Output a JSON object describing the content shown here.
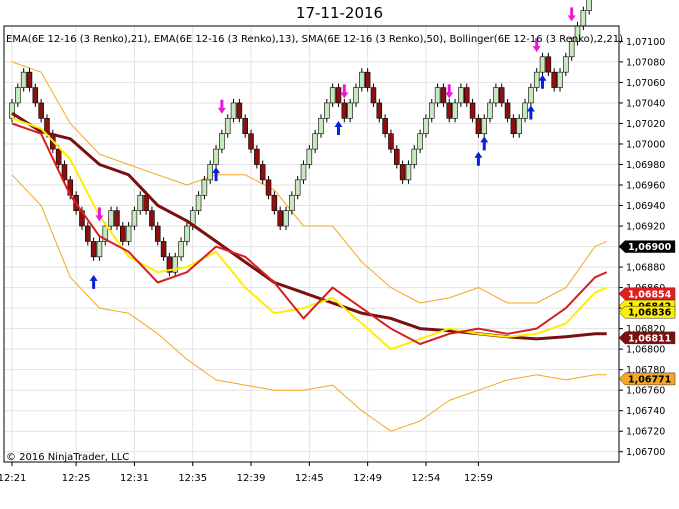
{
  "header": {
    "title": "17-11-2016"
  },
  "chart_data": {
    "type": "candlestick-renko",
    "title": "17-11-2016",
    "indicator_label": "EMA(6E 12-16 (3 Renko),21), EMA(6E 12-16 (3 Renko),13), SMA(6E 12-16 (3 Renko),50), Bollinger(6E 12-16 (3 Renko),2,21)",
    "copyright": "© 2016 NinjaTrader, LLC",
    "y_ticks": [
      "1,07100",
      "1,07080",
      "1,07060",
      "1,07040",
      "1,07020",
      "1,07000",
      "1,06980",
      "1,06960",
      "1,06940",
      "1,06920",
      "1,06900",
      "1,06880",
      "1,06860",
      "1,06840",
      "1,06820",
      "1,06800",
      "1,06780",
      "1,06760",
      "1,06740",
      "1,06720",
      "1,06700"
    ],
    "y_tick_values": [
      1.071,
      1.0708,
      1.0706,
      1.0704,
      1.0702,
      1.07,
      1.0698,
      1.0696,
      1.0694,
      1.0692,
      1.069,
      1.0688,
      1.0686,
      1.0684,
      1.0682,
      1.068,
      1.0678,
      1.0676,
      1.0674,
      1.0672,
      1.067
    ],
    "ylim": [
      1.0669,
      1.07115
    ],
    "x_ticks": [
      "12:21",
      "12:25",
      "12:31",
      "12:35",
      "12:39",
      "12:45",
      "12:49",
      "12:54",
      "12:59"
    ],
    "x_tick_bricks": [
      0,
      11,
      21,
      31,
      41,
      51,
      61,
      71,
      80
    ],
    "brick_size": 0.00015,
    "start_close": 1.07025,
    "moves": [
      1,
      1,
      1,
      -1,
      -1,
      -1,
      -1,
      -1,
      -1,
      -1,
      -1,
      -1,
      -1,
      -1,
      -1,
      1,
      1,
      1,
      -1,
      -1,
      1,
      1,
      1,
      -1,
      -1,
      -1,
      -1,
      -1,
      1,
      1,
      1,
      1,
      1,
      1,
      1,
      1,
      1,
      1,
      1,
      -1,
      -1,
      -1,
      -1,
      -1,
      -1,
      -1,
      -1,
      1,
      1,
      1,
      1,
      1,
      1,
      1,
      1,
      1,
      -1,
      -1,
      1,
      1,
      1,
      -1,
      -1,
      -1,
      -1,
      -1,
      -1,
      -1,
      1,
      1,
      1,
      1,
      1,
      1,
      -1,
      -1,
      1,
      1,
      -1,
      -1,
      -1,
      1,
      1,
      1,
      -1,
      -1,
      -1,
      1,
      1,
      1,
      1,
      1,
      -1,
      -1,
      1,
      1,
      1,
      1,
      1,
      1,
      1
    ],
    "series": [
      {
        "name": "EMA(6E 12-16 (3 Renko),21)",
        "color": "#d62020",
        "width": 2,
        "values": [
          [
            0,
            1.0702
          ],
          [
            5,
            1.0701
          ],
          [
            10,
            1.0695
          ],
          [
            15,
            1.0691
          ],
          [
            20,
            1.06895
          ],
          [
            25,
            1.06865
          ],
          [
            30,
            1.06875
          ],
          [
            35,
            1.069
          ],
          [
            40,
            1.0689
          ],
          [
            45,
            1.06865
          ],
          [
            50,
            1.0683
          ],
          [
            55,
            1.0686
          ],
          [
            60,
            1.0684
          ],
          [
            65,
            1.0682
          ],
          [
            70,
            1.06805
          ],
          [
            75,
            1.06815
          ],
          [
            80,
            1.0682
          ],
          [
            85,
            1.06815
          ],
          [
            90,
            1.0682
          ],
          [
            95,
            1.0684
          ],
          [
            100,
            1.0687
          ],
          [
            102,
            1.06875
          ]
        ]
      },
      {
        "name": "EMA(6E 12-16 (3 Renko),13)",
        "color": "#ffee00",
        "width": 2,
        "values": [
          [
            0,
            1.07025
          ],
          [
            5,
            1.07015
          ],
          [
            10,
            1.06985
          ],
          [
            15,
            1.0693
          ],
          [
            20,
            1.0689
          ],
          [
            25,
            1.06875
          ],
          [
            30,
            1.0688
          ],
          [
            35,
            1.06895
          ],
          [
            40,
            1.0686
          ],
          [
            45,
            1.06835
          ],
          [
            50,
            1.0684
          ],
          [
            55,
            1.0685
          ],
          [
            60,
            1.06825
          ],
          [
            65,
            1.068
          ],
          [
            70,
            1.0681
          ],
          [
            75,
            1.0682
          ],
          [
            80,
            1.06815
          ],
          [
            85,
            1.06812
          ],
          [
            90,
            1.06815
          ],
          [
            95,
            1.06825
          ],
          [
            100,
            1.06855
          ],
          [
            102,
            1.0686
          ]
        ]
      },
      {
        "name": "SMA(6E 12-16 (3 Renko),50)",
        "color": "#7a1010",
        "width": 3,
        "values": [
          [
            0,
            1.0703
          ],
          [
            5,
            1.07012
          ],
          [
            10,
            1.07005
          ],
          [
            15,
            1.0698
          ],
          [
            20,
            1.0697
          ],
          [
            25,
            1.0694
          ],
          [
            30,
            1.06925
          ],
          [
            35,
            1.06905
          ],
          [
            40,
            1.06885
          ],
          [
            45,
            1.06865
          ],
          [
            50,
            1.06855
          ],
          [
            55,
            1.06845
          ],
          [
            60,
            1.06835
          ],
          [
            65,
            1.0683
          ],
          [
            70,
            1.0682
          ],
          [
            75,
            1.06818
          ],
          [
            80,
            1.06815
          ],
          [
            85,
            1.06812
          ],
          [
            90,
            1.0681
          ],
          [
            95,
            1.06812
          ],
          [
            100,
            1.06815
          ],
          [
            102,
            1.06815
          ]
        ]
      },
      {
        "name": "Bollinger upper",
        "color": "#f5a623",
        "width": 1,
        "values": [
          [
            0,
            1.0708
          ],
          [
            5,
            1.0707
          ],
          [
            10,
            1.0702
          ],
          [
            15,
            1.0699
          ],
          [
            20,
            1.0698
          ],
          [
            25,
            1.0697
          ],
          [
            30,
            1.0696
          ],
          [
            35,
            1.0697
          ],
          [
            40,
            1.0697
          ],
          [
            45,
            1.06955
          ],
          [
            50,
            1.0692
          ],
          [
            55,
            1.0692
          ],
          [
            60,
            1.06885
          ],
          [
            65,
            1.0686
          ],
          [
            70,
            1.06845
          ],
          [
            75,
            1.0685
          ],
          [
            80,
            1.0686
          ],
          [
            85,
            1.06845
          ],
          [
            90,
            1.06845
          ],
          [
            95,
            1.0686
          ],
          [
            100,
            1.069
          ],
          [
            102,
            1.06905
          ]
        ]
      },
      {
        "name": "Bollinger lower",
        "color": "#f5a623",
        "width": 1,
        "values": [
          [
            0,
            1.0697
          ],
          [
            5,
            1.0694
          ],
          [
            10,
            1.0687
          ],
          [
            15,
            1.0684
          ],
          [
            20,
            1.06835
          ],
          [
            25,
            1.06815
          ],
          [
            30,
            1.0679
          ],
          [
            35,
            1.0677
          ],
          [
            40,
            1.06765
          ],
          [
            45,
            1.0676
          ],
          [
            50,
            1.0676
          ],
          [
            55,
            1.06765
          ],
          [
            60,
            1.0674
          ],
          [
            65,
            1.0672
          ],
          [
            70,
            1.0673
          ],
          [
            75,
            1.0675
          ],
          [
            80,
            1.0676
          ],
          [
            85,
            1.0677
          ],
          [
            90,
            1.06775
          ],
          [
            95,
            1.0677
          ],
          [
            100,
            1.06775
          ],
          [
            102,
            1.06775
          ]
        ]
      }
    ],
    "signals": [
      {
        "i": 14,
        "type": "up"
      },
      {
        "i": 15,
        "type": "down"
      },
      {
        "i": 35,
        "type": "up"
      },
      {
        "i": 36,
        "type": "down"
      },
      {
        "i": 56,
        "type": "up"
      },
      {
        "i": 57,
        "type": "down"
      },
      {
        "i": 75,
        "type": "down"
      },
      {
        "i": 80,
        "type": "up"
      },
      {
        "i": 81,
        "type": "up"
      },
      {
        "i": 89,
        "type": "up"
      },
      {
        "i": 90,
        "type": "down"
      },
      {
        "i": 91,
        "type": "up"
      },
      {
        "i": 96,
        "type": "down"
      },
      {
        "i": 101,
        "type": "down"
      }
    ],
    "price_tags": [
      {
        "label": "1,06900",
        "value": 1.069,
        "bg": "#000000",
        "fg": "#ffffff"
      },
      {
        "label": "1,06854",
        "value": 1.06854,
        "bg": "#e02020",
        "fg": "#ffffff"
      },
      {
        "label": "1,06842",
        "value": 1.06842,
        "bg": "#ffee00",
        "fg": "#000000"
      },
      {
        "label": "1,06836",
        "value": 1.06836,
        "bg": "#ffee00",
        "fg": "#000000"
      },
      {
        "label": "1,06811",
        "value": 1.06811,
        "bg": "#7a1010",
        "fg": "#ffffff"
      },
      {
        "label": "1,06771",
        "value": 1.06771,
        "bg": "#f5a623",
        "fg": "#000000"
      }
    ],
    "up_color": "#c8e8c0",
    "down_color": "#8b1010",
    "grid": true
  }
}
